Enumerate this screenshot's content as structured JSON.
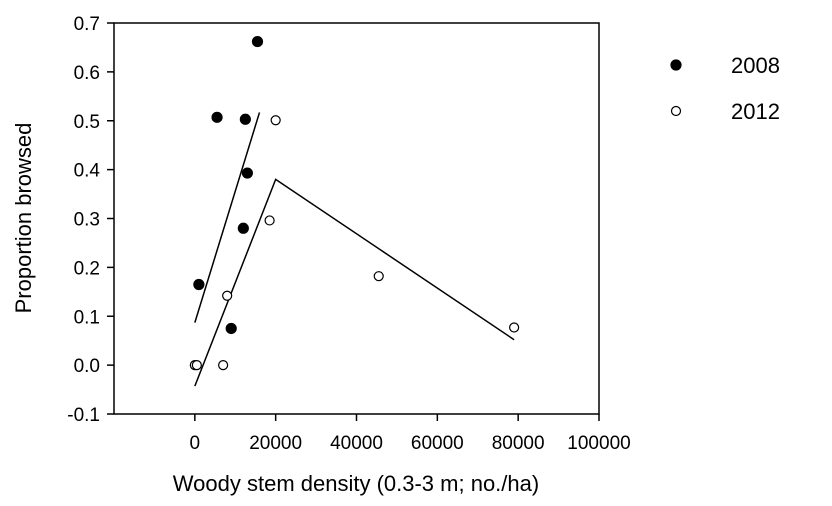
{
  "chart_data": {
    "type": "scatter",
    "xlabel": "Woody stem density (0.3-3 m; no./ha)",
    "ylabel": "Proportion browsed",
    "xlim": [
      -20000,
      100000
    ],
    "ylim": [
      -0.1,
      0.7
    ],
    "x_ticks": [
      0,
      20000,
      40000,
      60000,
      80000,
      100000
    ],
    "x_tick_labels": [
      "0",
      "20000",
      "40000",
      "60000",
      "80000",
      "100000"
    ],
    "y_ticks": [
      -0.1,
      0.0,
      0.1,
      0.2,
      0.3,
      0.4,
      0.5,
      0.6,
      0.7
    ],
    "y_tick_labels": [
      "-0.1",
      "0.0",
      "0.1",
      "0.2",
      "0.3",
      "0.4",
      "0.5",
      "0.6",
      "0.7"
    ],
    "grid": false,
    "legend_position": "right",
    "series": [
      {
        "name": "2008",
        "marker": "filled-circle",
        "color": "#000000",
        "points": [
          {
            "x": 1000,
            "y": 0.165
          },
          {
            "x": 5500,
            "y": 0.507
          },
          {
            "x": 9000,
            "y": 0.075
          },
          {
            "x": 12000,
            "y": 0.28
          },
          {
            "x": 12500,
            "y": 0.503
          },
          {
            "x": 13000,
            "y": 0.393
          },
          {
            "x": 15500,
            "y": 0.662
          }
        ],
        "fit_line": [
          {
            "x": 0,
            "y": 0.087
          },
          {
            "x": 16000,
            "y": 0.517
          }
        ]
      },
      {
        "name": "2012",
        "marker": "open-circle",
        "color": "#000000",
        "points": [
          {
            "x": 0,
            "y": 0.0
          },
          {
            "x": 500,
            "y": 0.0
          },
          {
            "x": 7000,
            "y": 0.0
          },
          {
            "x": 8000,
            "y": 0.142
          },
          {
            "x": 18500,
            "y": 0.296
          },
          {
            "x": 20000,
            "y": 0.501
          },
          {
            "x": 45500,
            "y": 0.182
          },
          {
            "x": 79000,
            "y": 0.077
          }
        ],
        "fit_line": [
          {
            "x": 0,
            "y": -0.043
          },
          {
            "x": 20000,
            "y": 0.38
          },
          {
            "x": 79000,
            "y": 0.052
          }
        ]
      }
    ]
  }
}
